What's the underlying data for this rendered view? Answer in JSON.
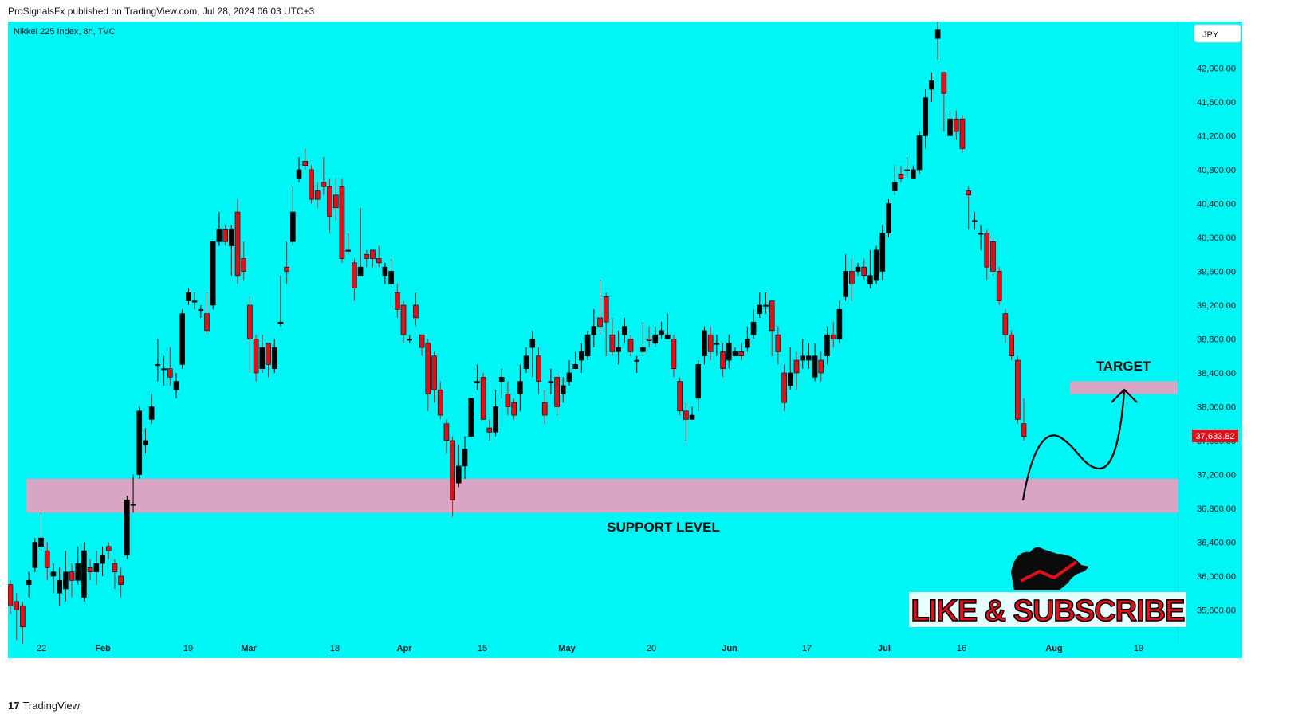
{
  "header": {
    "published": "ProSignalsFx published on TradingView.com, Jul 28, 2024 06:03 UTC+3"
  },
  "footer": {
    "brand": "TradingView",
    "logo_glyph": "17"
  },
  "colors": {
    "background": "#00f5f5",
    "up_candle": "#000000",
    "down_candle": "#e0101a",
    "zone_fill": "#d8a6c4",
    "price_badge": "#e0101a"
  },
  "chart_data": {
    "type": "candlestick",
    "symbol_label": "Nikkei 225 Index, 8h, TVC",
    "currency": "JPY",
    "last_price": "37,633.82",
    "y_ticks": [
      "35,600.00",
      "36,000.00",
      "36,400.00",
      "36,800.00",
      "37,200.00",
      "37,600.00",
      "38,000.00",
      "38,400.00",
      "38,800.00",
      "39,200.00",
      "39,600.00",
      "40,000.00",
      "40,400.00",
      "40,800.00",
      "41,200.00",
      "41,600.00",
      "42,000.00"
    ],
    "ylim": [
      35200,
      42550
    ],
    "x_ticks": [
      "22",
      "Feb",
      "19",
      "Mar",
      "18",
      "Apr",
      "15",
      "May",
      "20",
      "Jun",
      "17",
      "Jul",
      "16",
      "Aug",
      "19"
    ],
    "candles": [
      [
        35900,
        35650,
        35950,
        35550
      ],
      [
        35700,
        35600,
        35800,
        35250
      ],
      [
        35650,
        35400,
        35700,
        35200
      ],
      [
        35900,
        35950,
        36050,
        35750
      ],
      [
        36100,
        36400,
        36450,
        36050
      ],
      [
        36350,
        36450,
        36750,
        36300
      ],
      [
        36300,
        36100,
        36400,
        35950
      ],
      [
        36000,
        36050,
        36150,
        35800
      ],
      [
        35800,
        35950,
        36100,
        35650
      ],
      [
        35850,
        36050,
        36300,
        35700
      ],
      [
        36050,
        35950,
        36150,
        35750
      ],
      [
        35950,
        36150,
        36350,
        35900
      ],
      [
        35750,
        36300,
        36400,
        35700
      ],
      [
        36100,
        36050,
        36200,
        35950
      ],
      [
        36050,
        36150,
        36300,
        35900
      ],
      [
        36150,
        36250,
        36350,
        36000
      ],
      [
        36350,
        36300,
        36400,
        36200
      ],
      [
        36150,
        36050,
        36200,
        35850
      ],
      [
        36000,
        35900,
        36100,
        35750
      ],
      [
        36250,
        36900,
        36950,
        36200
      ],
      [
        36850,
        36850,
        37200,
        36750
      ],
      [
        37200,
        37950,
        38000,
        37150
      ],
      [
        37550,
        37600,
        37750,
        37450
      ],
      [
        37850,
        38000,
        38150,
        37800
      ],
      [
        38500,
        38500,
        38800,
        38300
      ],
      [
        38450,
        38450,
        38600,
        38250
      ],
      [
        38450,
        38350,
        38700,
        38250
      ],
      [
        38200,
        38300,
        38400,
        38100
      ],
      [
        38500,
        39100,
        39150,
        38450
      ],
      [
        39250,
        39350,
        39400,
        39200
      ],
      [
        39250,
        39250,
        39350,
        39150
      ],
      [
        39150,
        39150,
        39200,
        39050
      ],
      [
        39100,
        38900,
        39350,
        38850
      ],
      [
        39200,
        39950,
        39950,
        39150
      ],
      [
        39950,
        40100,
        40300,
        39900
      ],
      [
        40100,
        39950,
        40150,
        39900
      ],
      [
        39900,
        40100,
        40150,
        39550
      ],
      [
        40300,
        39550,
        40450,
        39450
      ],
      [
        39750,
        39600,
        39950,
        39500
      ],
      [
        39200,
        38800,
        39300,
        38400
      ],
      [
        38800,
        38400,
        38850,
        38300
      ],
      [
        38450,
        38700,
        38850,
        38400
      ],
      [
        38750,
        38500,
        38700,
        38350
      ],
      [
        38450,
        38700,
        38800,
        38400
      ],
      [
        39000,
        39000,
        39550,
        38950
      ],
      [
        39650,
        39600,
        39950,
        39450
      ],
      [
        39950,
        40300,
        40600,
        39900
      ],
      [
        40700,
        40800,
        40950,
        40650
      ],
      [
        40900,
        40850,
        41050,
        40800
      ],
      [
        40800,
        40450,
        40850,
        40400
      ],
      [
        40550,
        40450,
        40650,
        40350
      ],
      [
        40650,
        40600,
        40950,
        40500
      ],
      [
        40600,
        40250,
        40700,
        40050
      ],
      [
        40500,
        40350,
        40700,
        40200
      ],
      [
        40600,
        39750,
        40700,
        39700
      ],
      [
        39850,
        39850,
        40050,
        39800
      ],
      [
        39700,
        39400,
        39750,
        39250
      ],
      [
        39550,
        39650,
        40350,
        39550
      ],
      [
        39800,
        39750,
        39850,
        39650
      ],
      [
        39850,
        39750,
        39850,
        39650
      ],
      [
        39750,
        39700,
        39900,
        39650
      ],
      [
        39550,
        39650,
        39700,
        39450
      ],
      [
        39450,
        39600,
        39750,
        39450
      ],
      [
        39350,
        39150,
        39450,
        39050
      ],
      [
        39200,
        38850,
        39250,
        38750
      ],
      [
        38800,
        38800,
        38850,
        38750
      ],
      [
        39200,
        39050,
        39350,
        38950
      ],
      [
        38850,
        38700,
        38850,
        38600
      ],
      [
        38750,
        38150,
        38800,
        37950
      ],
      [
        38600,
        38200,
        38650,
        38050
      ],
      [
        38200,
        37900,
        38300,
        37850
      ],
      [
        37800,
        37600,
        37850,
        37450
      ],
      [
        37600,
        36900,
        37650,
        36700
      ],
      [
        37100,
        37300,
        37550,
        37050
      ],
      [
        37300,
        37500,
        37650,
        37150
      ],
      [
        37650,
        38100,
        38100,
        37650
      ],
      [
        38300,
        38300,
        38500,
        38200
      ],
      [
        38350,
        37850,
        38400,
        37850
      ],
      [
        37750,
        37700,
        37850,
        37600
      ],
      [
        37700,
        38000,
        38200,
        37650
      ],
      [
        38300,
        38350,
        38450,
        38100
      ],
      [
        38150,
        38000,
        38300,
        37900
      ],
      [
        38050,
        37900,
        38100,
        37850
      ],
      [
        38150,
        38300,
        38500,
        37950
      ],
      [
        38450,
        38600,
        38700,
        38400
      ],
      [
        38700,
        38800,
        38900,
        38350
      ],
      [
        38600,
        38300,
        38700,
        38150
      ],
      [
        38050,
        37900,
        38200,
        37800
      ],
      [
        38300,
        38300,
        38450,
        38150
      ],
      [
        38350,
        38000,
        38400,
        37900
      ],
      [
        38150,
        38250,
        38350,
        38050
      ],
      [
        38300,
        38400,
        38550,
        38250
      ],
      [
        38450,
        38500,
        38650,
        38450
      ],
      [
        38550,
        38650,
        38750,
        38400
      ],
      [
        38600,
        38850,
        38900,
        38550
      ],
      [
        38850,
        38950,
        39150,
        38700
      ],
      [
        39050,
        38950,
        39500,
        38850
      ],
      [
        39300,
        39000,
        39350,
        38600
      ],
      [
        38850,
        38650,
        39050,
        38600
      ],
      [
        38650,
        38700,
        38900,
        38500
      ],
      [
        38850,
        38950,
        39050,
        38750
      ],
      [
        38800,
        38650,
        38850,
        38600
      ],
      [
        38550,
        38550,
        38600,
        38400
      ],
      [
        38650,
        38700,
        39000,
        38600
      ],
      [
        38800,
        38780,
        38950,
        38700
      ],
      [
        38750,
        38850,
        38950,
        38700
      ],
      [
        38850,
        38900,
        39000,
        38800
      ],
      [
        38800,
        38850,
        39100,
        38800
      ],
      [
        38800,
        38450,
        38850,
        38350
      ],
      [
        38300,
        37950,
        38350,
        37900
      ],
      [
        37950,
        37850,
        38050,
        37600
      ],
      [
        37850,
        37900,
        38000,
        37850
      ],
      [
        38100,
        38500,
        38550,
        37950
      ],
      [
        38600,
        38900,
        38950,
        38500
      ],
      [
        38850,
        38650,
        38950,
        38550
      ],
      [
        38750,
        38750,
        38850,
        38600
      ],
      [
        38650,
        38450,
        38750,
        38350
      ],
      [
        38550,
        38750,
        38850,
        38450
      ],
      [
        38600,
        38650,
        38700,
        38600
      ],
      [
        38650,
        38600,
        38750,
        38550
      ],
      [
        38700,
        38800,
        38950,
        38650
      ],
      [
        38850,
        39000,
        39150,
        38800
      ],
      [
        39100,
        39200,
        39350,
        39050
      ],
      [
        39200,
        39200,
        39350,
        39100
      ],
      [
        39250,
        38900,
        39250,
        38600
      ],
      [
        38850,
        38650,
        38950,
        38500
      ],
      [
        38400,
        38050,
        38500,
        37950
      ],
      [
        38250,
        38400,
        38700,
        38200
      ],
      [
        38550,
        38400,
        38650,
        38200
      ],
      [
        38550,
        38600,
        38800,
        38450
      ],
      [
        38550,
        38600,
        38750,
        38450
      ],
      [
        38350,
        38600,
        38750,
        38300
      ],
      [
        38550,
        38400,
        38650,
        38300
      ],
      [
        38600,
        38850,
        38950,
        38500
      ],
      [
        38850,
        38800,
        39000,
        38700
      ],
      [
        38800,
        39150,
        39250,
        38750
      ],
      [
        39300,
        39600,
        39800,
        39250
      ],
      [
        39600,
        39450,
        39750,
        39250
      ],
      [
        39600,
        39650,
        39700,
        39550
      ],
      [
        39650,
        39550,
        39750,
        39500
      ],
      [
        39450,
        39550,
        39850,
        39400
      ],
      [
        39500,
        39850,
        39900,
        39450
      ],
      [
        39600,
        40050,
        40150,
        39500
      ],
      [
        40050,
        40400,
        40450,
        40000
      ],
      [
        40550,
        40650,
        40850,
        40500
      ],
      [
        40750,
        40700,
        40850,
        40650
      ],
      [
        40800,
        40800,
        40950,
        40700
      ],
      [
        40700,
        40800,
        40850,
        40700
      ],
      [
        40800,
        41200,
        41250,
        40750
      ],
      [
        41200,
        41650,
        41750,
        41050
      ],
      [
        41750,
        41850,
        41950,
        41600
      ],
      [
        42350,
        42450,
        42600,
        42100
      ],
      [
        41950,
        41700,
        41750,
        41250
      ],
      [
        41200,
        41400,
        41500,
        41200
      ],
      [
        41400,
        41250,
        41500,
        41150
      ],
      [
        41400,
        41050,
        41450,
        41000
      ],
      [
        40550,
        40500,
        40600,
        40100
      ],
      [
        40200,
        40200,
        40300,
        40100
      ],
      [
        40050,
        40050,
        40150,
        39850
      ],
      [
        40050,
        39650,
        40100,
        39500
      ],
      [
        39950,
        39600,
        40000,
        39550
      ],
      [
        39600,
        39250,
        39650,
        39200
      ],
      [
        39100,
        38850,
        39150,
        38750
      ],
      [
        38850,
        38600,
        38900,
        38550
      ],
      [
        38550,
        37850,
        38600,
        37800
      ],
      [
        37800,
        37650,
        38100,
        37600
      ]
    ],
    "annotations": {
      "support_label": "SUPPORT LEVEL",
      "target_label": "TARGET",
      "support_zone": [
        36750,
        37150
      ],
      "target_zone": [
        38150,
        38300
      ],
      "cta": "LIKE & SUBSCRIBE"
    }
  }
}
